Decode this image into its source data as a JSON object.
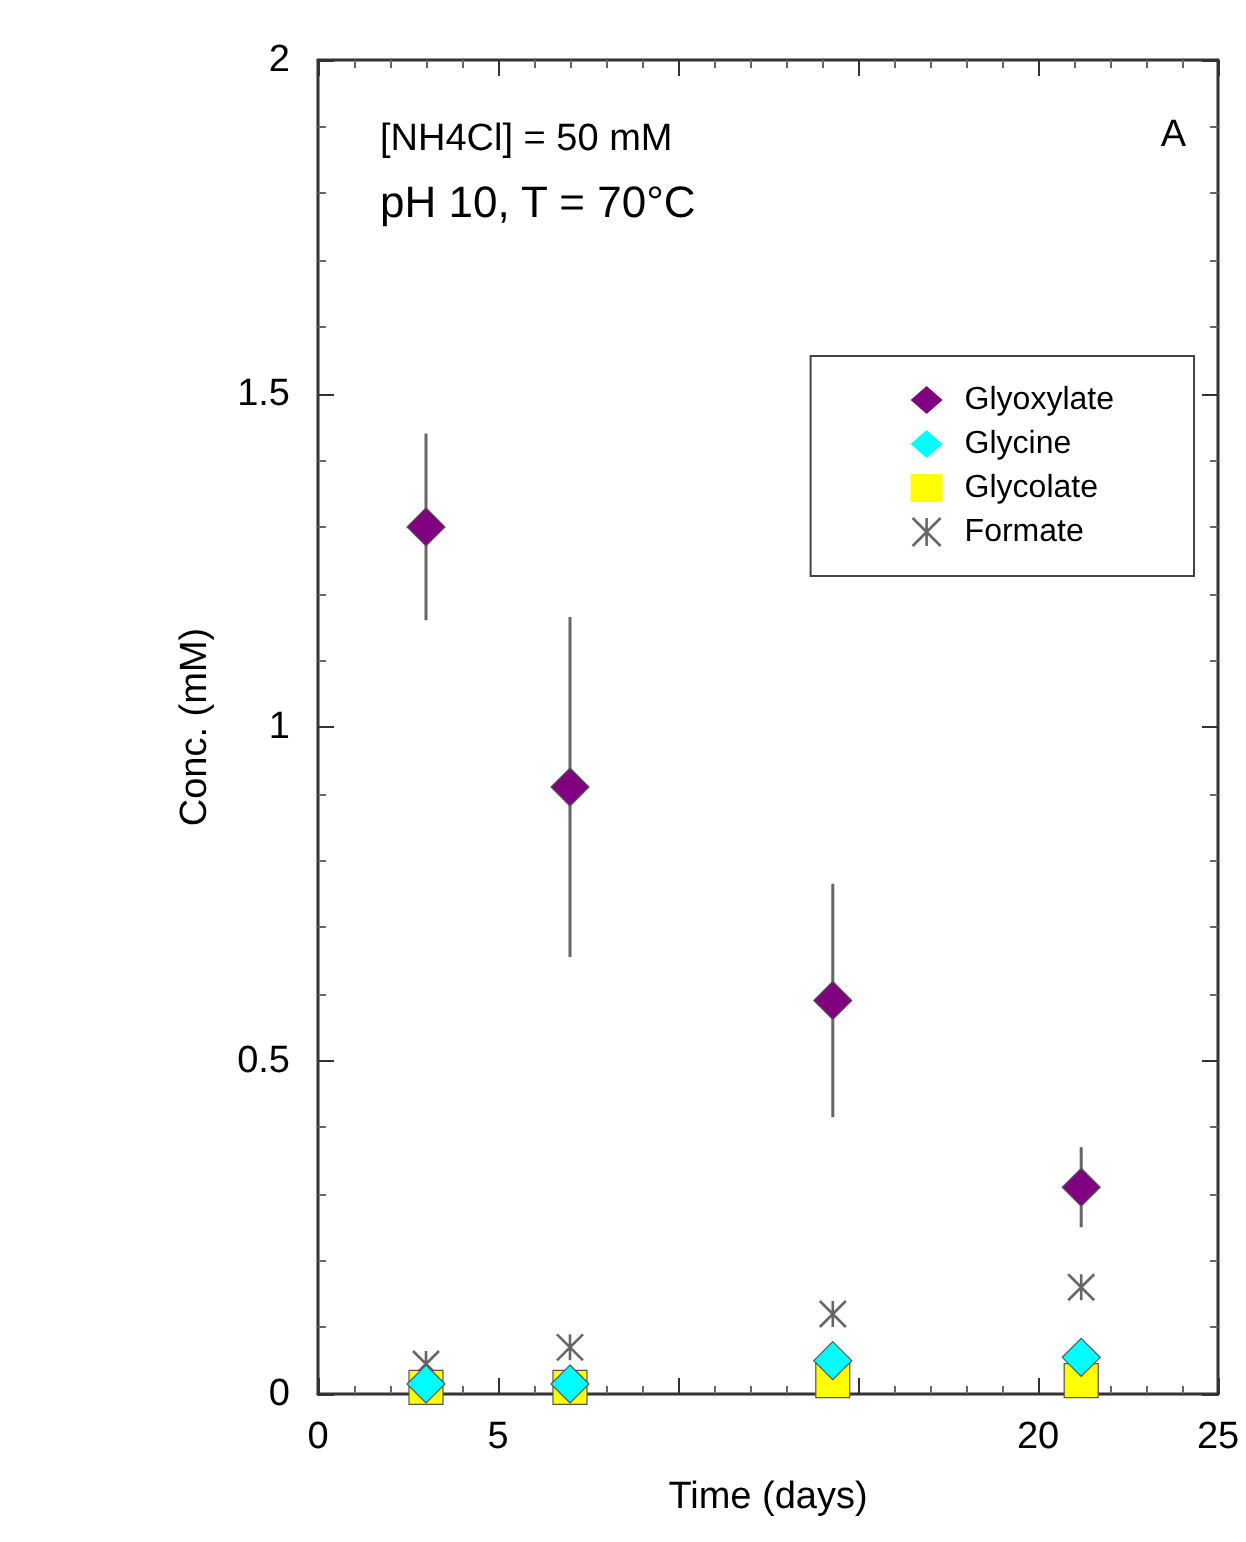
{
  "chart_data": {
    "type": "scatter",
    "xlabel": "Time (days)",
    "ylabel": "Conc. (mM)",
    "annotations": [
      "[NH4Cl] = 50 mM",
      "pH 10, T = 70°C",
      "A"
    ],
    "x": [
      3,
      7,
      14.3,
      21.2
    ],
    "series": [
      {
        "name": "Glyoxylate",
        "color": "#800080",
        "marker": "diamond",
        "values": [
          1.3,
          0.91,
          0.59,
          0.31
        ],
        "errors": [
          0.14,
          0.255,
          0.175,
          0.06
        ]
      },
      {
        "name": "Glycine",
        "color": "#00ffff",
        "marker": "diamond",
        "values": [
          0.015,
          0.015,
          0.05,
          0.055
        ]
      },
      {
        "name": "Glycolate",
        "color": "#ffff00",
        "marker": "square",
        "values": [
          0.01,
          0.01,
          0.02,
          0.02
        ]
      },
      {
        "name": "Formate",
        "color": "#404040",
        "marker": "cross",
        "values": [
          0.045,
          0.07,
          0.12,
          0.16
        ]
      }
    ],
    "xlim": [
      0,
      25
    ],
    "xticks": [
      0,
      5,
      {
        "value": 10,
        "label": null
      },
      {
        "value": 15,
        "label": null
      },
      20,
      25
    ],
    "ylim": [
      0,
      2
    ],
    "yticks": [
      0,
      0.5,
      1,
      1.5,
      2
    ],
    "grid": false,
    "legend": "top right"
  }
}
